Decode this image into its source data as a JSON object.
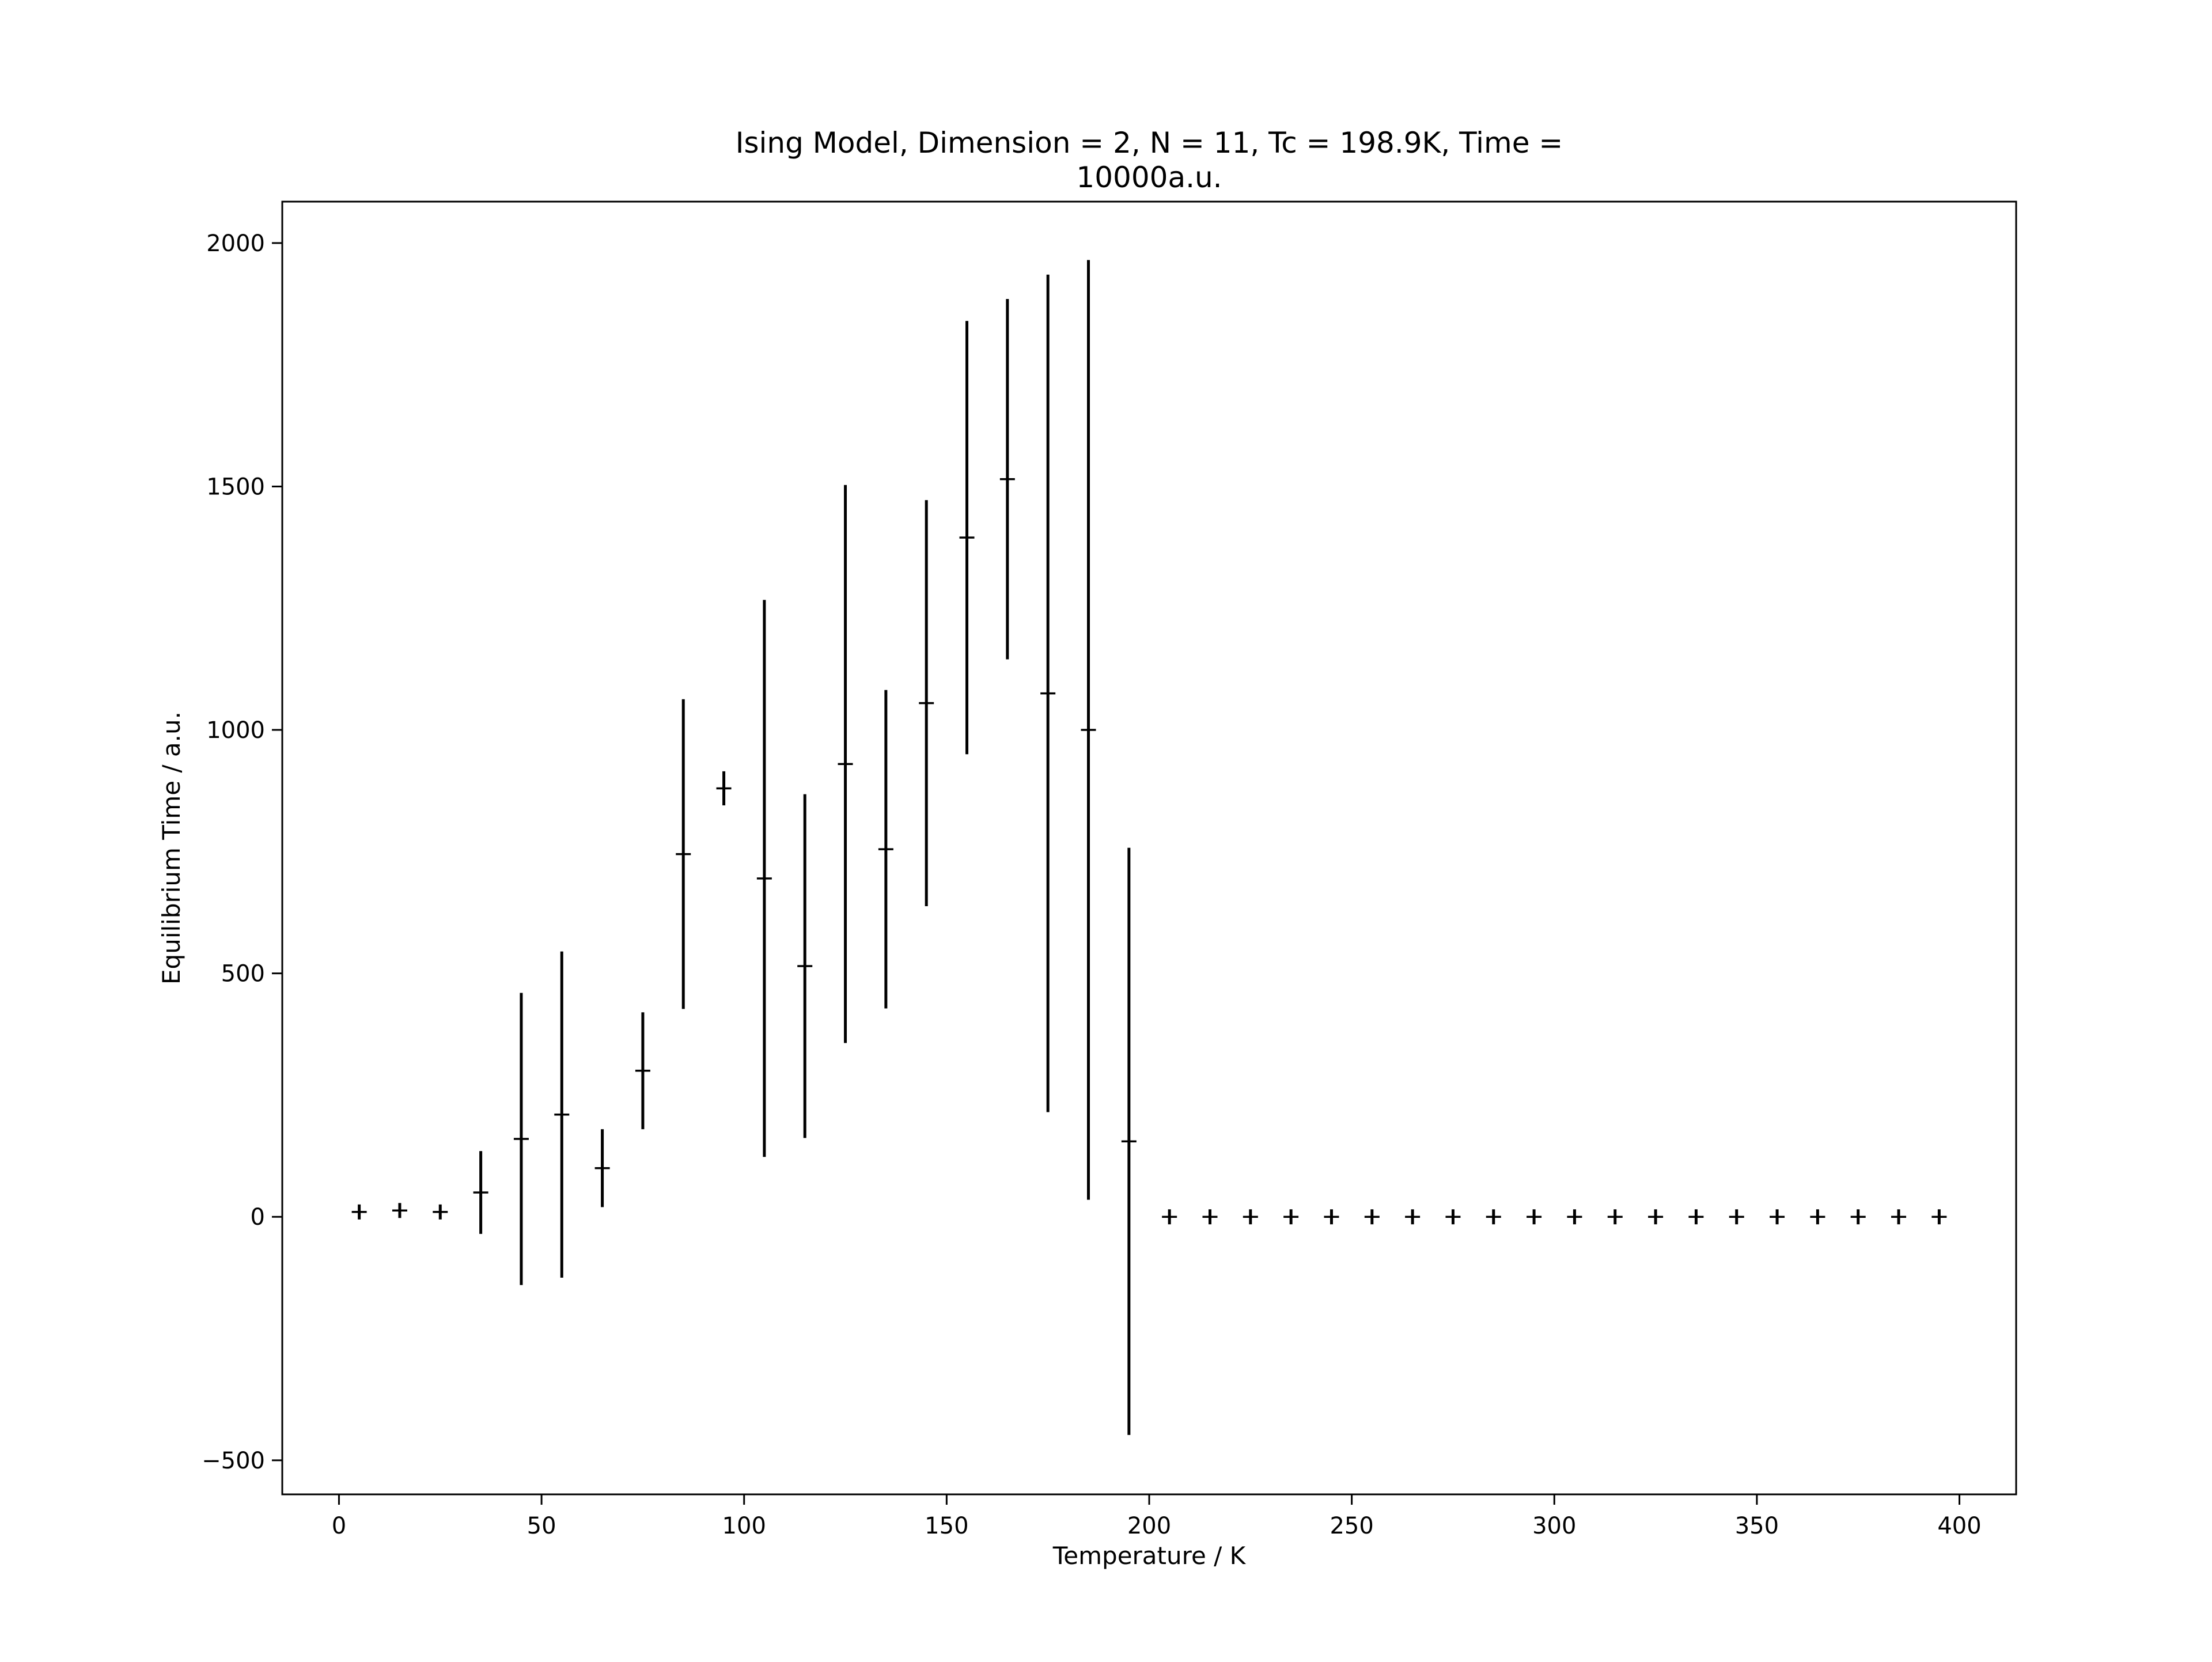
{
  "chart_data": {
    "type": "scatter",
    "title_lines": [
      "Ising Model, Dimension = 2, N = 11, Tc = 198.9K, Time =",
      "10000a.u."
    ],
    "xlabel": "Temperature / K",
    "ylabel": "Equilibrium Time / a.u.",
    "xlim": [
      -14,
      414
    ],
    "ylim": [
      -570,
      2085
    ],
    "xticks": [
      0,
      50,
      100,
      150,
      200,
      250,
      300,
      350,
      400
    ],
    "yticks": [
      -500,
      0,
      500,
      1000,
      1500,
      2000
    ],
    "ytick_labels": [
      "−500",
      "0",
      "500",
      "1000",
      "1500",
      "2000"
    ],
    "grid": false,
    "legend": "none",
    "marker_color": "#000000",
    "points": [
      {
        "x": 5,
        "y": 10,
        "err": 12
      },
      {
        "x": 15,
        "y": 13,
        "err": 14
      },
      {
        "x": 25,
        "y": 10,
        "err": 12
      },
      {
        "x": 35,
        "y": 50,
        "err": 85
      },
      {
        "x": 45,
        "y": 160,
        "err": 300
      },
      {
        "x": 55,
        "y": 210,
        "err": 335
      },
      {
        "x": 65,
        "y": 100,
        "err": 80
      },
      {
        "x": 75,
        "y": 300,
        "err": 120
      },
      {
        "x": 85,
        "y": 745,
        "err": 318
      },
      {
        "x": 95,
        "y": 880,
        "err": 35
      },
      {
        "x": 105,
        "y": 695,
        "err": 572
      },
      {
        "x": 115,
        "y": 515,
        "err": 353
      },
      {
        "x": 125,
        "y": 930,
        "err": 573
      },
      {
        "x": 135,
        "y": 755,
        "err": 327
      },
      {
        "x": 145,
        "y": 1055,
        "err": 417
      },
      {
        "x": 155,
        "y": 1395,
        "err": 445
      },
      {
        "x": 165,
        "y": 1515,
        "err": 370
      },
      {
        "x": 175,
        "y": 1075,
        "err": 860
      },
      {
        "x": 185,
        "y": 1000,
        "err": 965
      },
      {
        "x": 195,
        "y": 155,
        "err": 603
      },
      {
        "x": 205,
        "y": 0,
        "err": 0
      },
      {
        "x": 215,
        "y": 0,
        "err": 0
      },
      {
        "x": 225,
        "y": 0,
        "err": 0
      },
      {
        "x": 235,
        "y": 0,
        "err": 0
      },
      {
        "x": 245,
        "y": 0,
        "err": 0
      },
      {
        "x": 255,
        "y": 0,
        "err": 0
      },
      {
        "x": 265,
        "y": 0,
        "err": 0
      },
      {
        "x": 275,
        "y": 0,
        "err": 0
      },
      {
        "x": 285,
        "y": 0,
        "err": 0
      },
      {
        "x": 295,
        "y": 0,
        "err": 0
      },
      {
        "x": 305,
        "y": 0,
        "err": 0
      },
      {
        "x": 315,
        "y": 0,
        "err": 0
      },
      {
        "x": 325,
        "y": 0,
        "err": 0
      },
      {
        "x": 335,
        "y": 0,
        "err": 0
      },
      {
        "x": 345,
        "y": 0,
        "err": 0
      },
      {
        "x": 355,
        "y": 0,
        "err": 0
      },
      {
        "x": 365,
        "y": 0,
        "err": 0
      },
      {
        "x": 375,
        "y": 0,
        "err": 0
      },
      {
        "x": 385,
        "y": 0,
        "err": 0
      },
      {
        "x": 395,
        "y": 0,
        "err": 0
      }
    ]
  }
}
